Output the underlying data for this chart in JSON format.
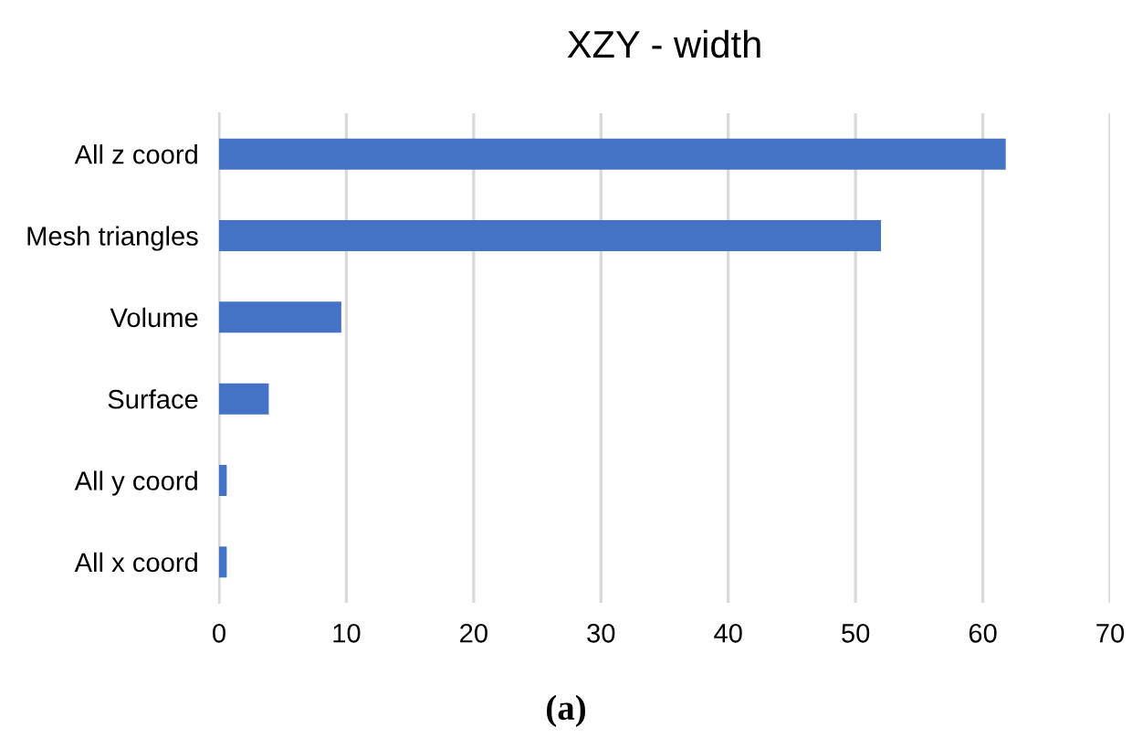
{
  "chart_data": {
    "type": "bar",
    "orientation": "horizontal",
    "title": "XZY - width",
    "categories": [
      "All z coord",
      "Mesh triangles",
      "Volume",
      "Surface",
      "All y coord",
      "All x coord"
    ],
    "values": [
      61.8,
      52.0,
      9.6,
      3.9,
      0.6,
      0.6
    ],
    "color": "#4472c4",
    "xlim": [
      0,
      70
    ],
    "xticks": [
      0,
      10,
      20,
      30,
      40,
      50,
      60,
      70
    ],
    "grid": "x",
    "annotations": [
      "(a)"
    ]
  }
}
